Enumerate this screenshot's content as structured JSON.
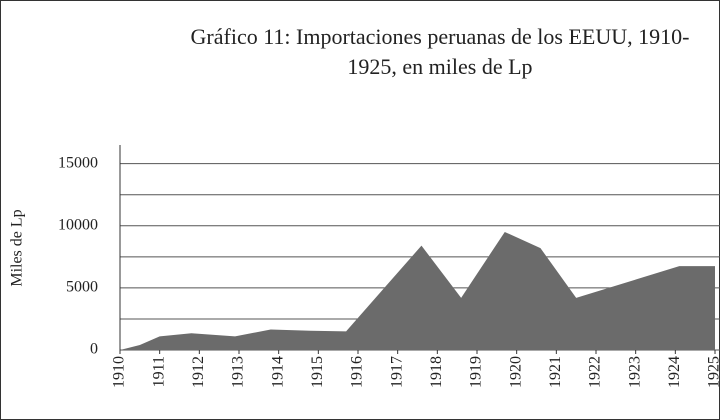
{
  "chart_data": {
    "type": "area",
    "title": "Gráfico 11: Importaciones peruanas de los EEUU, 1910-1925, en miles de Lp",
    "y_label": "Miles de Lp",
    "x": [
      1910,
      1910.5,
      1911,
      1911.8,
      1912.9,
      1913.8,
      1914.8,
      1915.7,
      1917.6,
      1918.6,
      1919.7,
      1920.6,
      1921.5,
      1924.1,
      1925
    ],
    "values": [
      0,
      400,
      1100,
      1350,
      1100,
      1650,
      1550,
      1500,
      8400,
      4200,
      9500,
      8200,
      4200,
      6750,
      6750
    ],
    "color": "#6b6b6b",
    "xlim": [
      1910,
      1925
    ],
    "xticks": [
      1910,
      1911,
      1912,
      1913,
      1914,
      1915,
      1916,
      1917,
      1918,
      1919,
      1920,
      1921,
      1922,
      1923,
      1924,
      1925
    ],
    "ylim": [
      0,
      16500
    ],
    "yticks": [
      0,
      5000,
      10000,
      15000
    ],
    "grid": true
  }
}
